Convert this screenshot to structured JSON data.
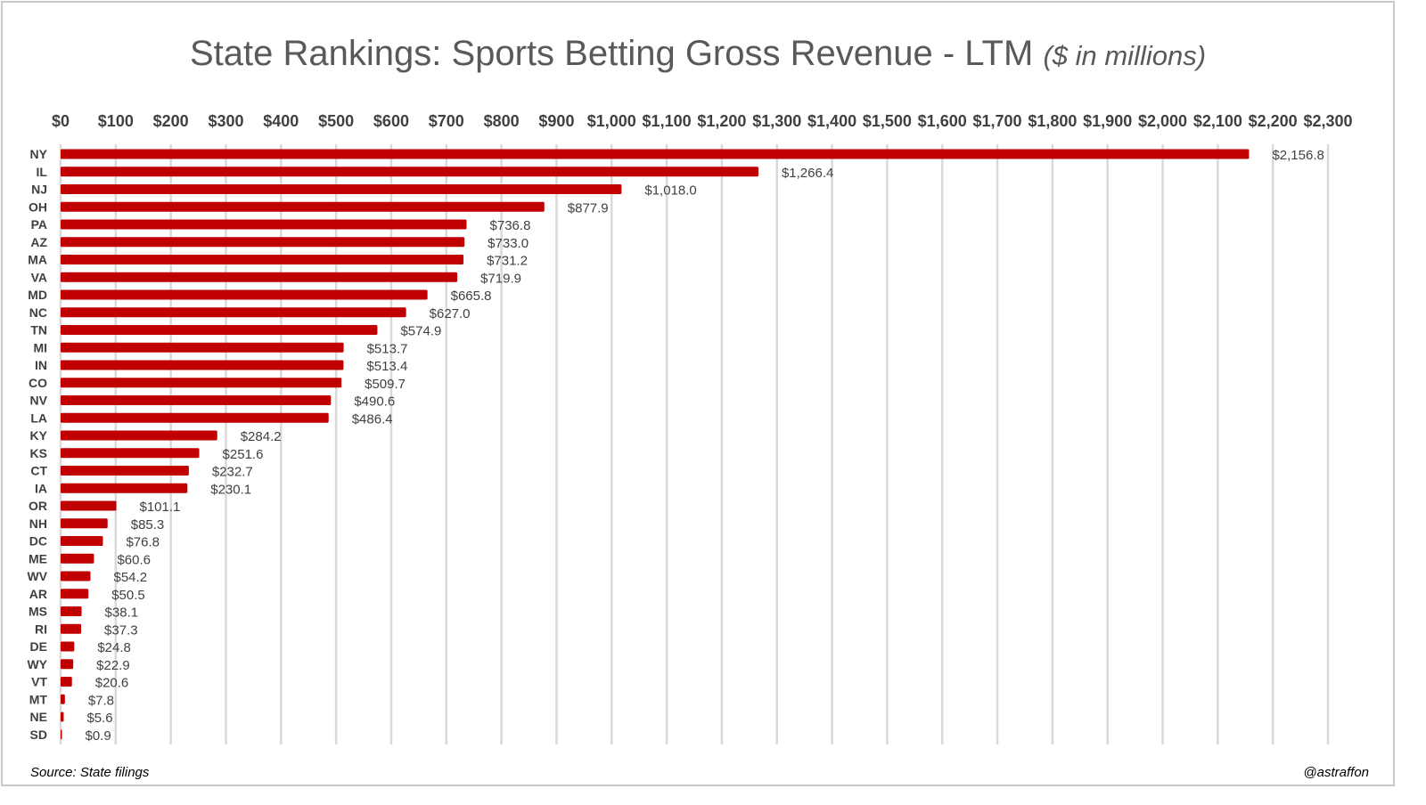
{
  "title": "State Rankings: Sports Betting Gross Revenue - LTM",
  "title_unit": "($ in millions)",
  "source": "Source: State filings",
  "credit": "@astraffon",
  "colors": {
    "bar": "#C00000",
    "grid": "#D9D9D9",
    "text": "#404040",
    "title": "#595959"
  },
  "chart_data": {
    "type": "bar",
    "orientation": "horizontal",
    "title": "State Rankings: Sports Betting Gross Revenue - LTM ($ in millions)",
    "categories": [
      "NY",
      "IL",
      "NJ",
      "OH",
      "PA",
      "AZ",
      "MA",
      "VA",
      "MD",
      "NC",
      "TN",
      "MI",
      "IN",
      "CO",
      "NV",
      "LA",
      "KY",
      "KS",
      "CT",
      "IA",
      "OR",
      "NH",
      "DC",
      "ME",
      "WV",
      "AR",
      "MS",
      "RI",
      "DE",
      "WY",
      "VT",
      "MT",
      "NE",
      "SD"
    ],
    "values": [
      2156.8,
      1266.4,
      1018.0,
      877.9,
      736.8,
      733.0,
      731.2,
      719.9,
      665.8,
      627.0,
      574.9,
      513.7,
      513.4,
      509.7,
      490.6,
      486.4,
      284.2,
      251.6,
      232.7,
      230.1,
      101.1,
      85.3,
      76.8,
      60.6,
      54.2,
      50.5,
      38.1,
      37.3,
      24.8,
      22.9,
      20.6,
      7.8,
      5.6,
      0.9
    ],
    "data_labels": [
      "$2,156.8",
      "$1,266.4",
      "$1,018.0",
      "$877.9",
      "$736.8",
      "$733.0",
      "$731.2",
      "$719.9",
      "$665.8",
      "$627.0",
      "$574.9",
      "$513.7",
      "$513.4",
      "$509.7",
      "$490.6",
      "$486.4",
      "$284.2",
      "$251.6",
      "$232.7",
      "$230.1",
      "$101.1",
      "$85.3",
      "$76.8",
      "$60.6",
      "$54.2",
      "$50.5",
      "$38.1",
      "$37.3",
      "$24.8",
      "$22.9",
      "$20.6",
      "$7.8",
      "$5.6",
      "$0.9"
    ],
    "x_ticks": [
      "$0",
      "$100",
      "$200",
      "$300",
      "$400",
      "$500",
      "$600",
      "$700",
      "$800",
      "$900",
      "$1,000",
      "$1,100",
      "$1,200",
      "$1,300",
      "$1,400",
      "$1,500",
      "$1,600",
      "$1,700",
      "$1,800",
      "$1,900",
      "$2,000",
      "$2,100",
      "$2,200",
      "$2,300"
    ],
    "xlim": [
      0,
      2300
    ],
    "x_axis_position": "top",
    "grid": true,
    "legend": false
  }
}
